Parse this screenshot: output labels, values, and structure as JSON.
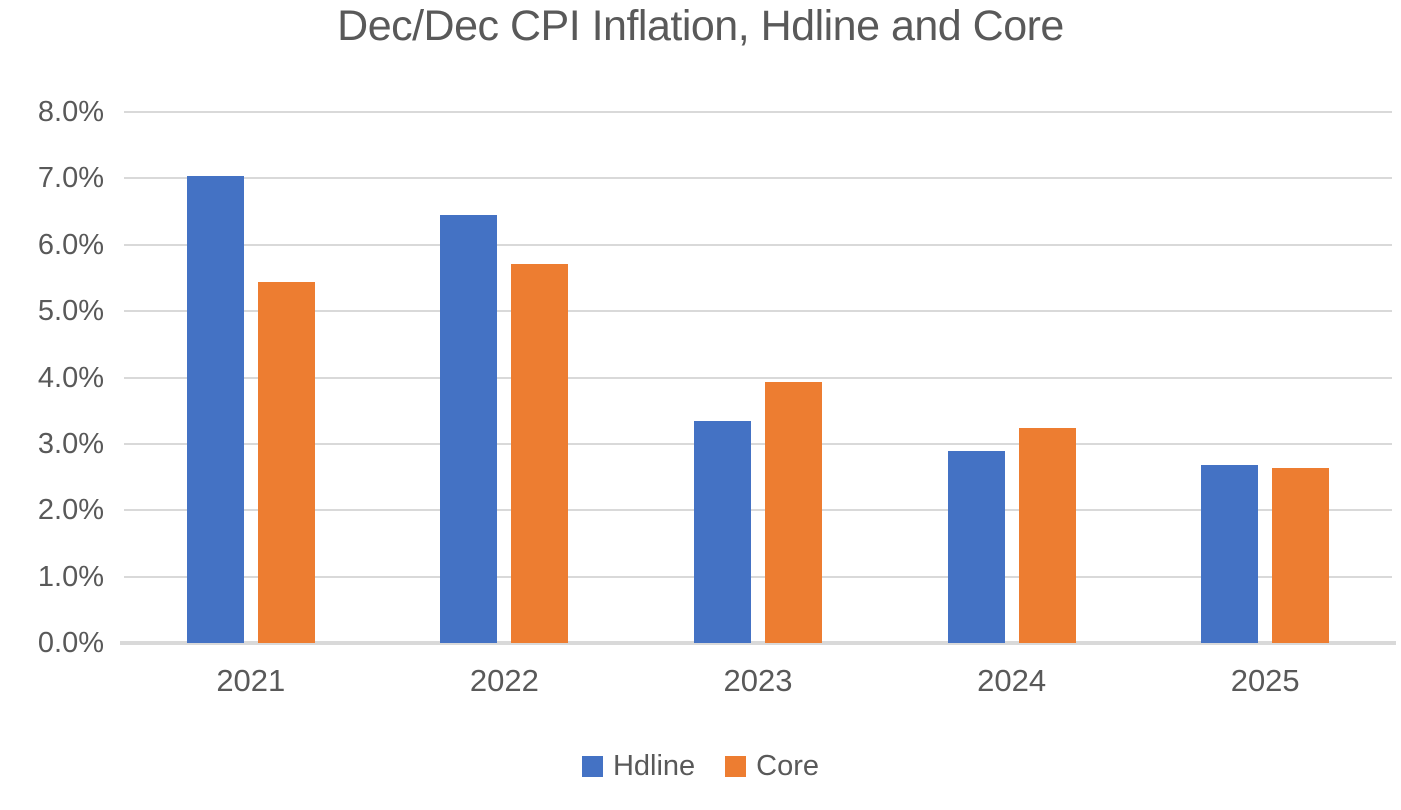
{
  "chart_data": {
    "type": "bar",
    "title": "Dec/Dec CPI Inflation, Hdline and Core",
    "categories": [
      "2021",
      "2022",
      "2023",
      "2024",
      "2025"
    ],
    "series": [
      {
        "name": "Hdline",
        "color": "#4472C4",
        "values": [
          7.04,
          6.45,
          3.35,
          2.89,
          2.68
        ]
      },
      {
        "name": "Core",
        "color": "#ED7D31",
        "values": [
          5.44,
          5.71,
          3.93,
          3.24,
          2.64
        ]
      }
    ],
    "ylim": [
      0,
      8
    ],
    "y_tick_step": 1,
    "y_tick_labels": [
      "8.0%",
      "7.0%",
      "6.0%",
      "5.0%",
      "4.0%",
      "3.0%",
      "2.0%",
      "1.0%",
      "0.0%"
    ],
    "grid": true,
    "legend_position": "bottom",
    "colors": {
      "grid": "#D9D9D9",
      "axis_text": "#595959",
      "title_text": "#595959",
      "background": "#FFFFFF"
    }
  }
}
